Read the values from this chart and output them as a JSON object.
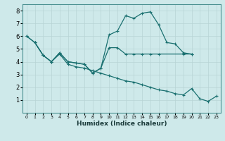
{
  "xlabel": "Humidex (Indice chaleur)",
  "xlim": [
    -0.5,
    23.5
  ],
  "ylim": [
    0,
    8.5
  ],
  "xticks": [
    0,
    1,
    2,
    3,
    4,
    5,
    6,
    7,
    8,
    9,
    10,
    11,
    12,
    13,
    14,
    15,
    16,
    17,
    18,
    19,
    20,
    21,
    22,
    23
  ],
  "yticks": [
    1,
    2,
    3,
    4,
    5,
    6,
    7,
    8
  ],
  "bg_color": "#cee9ea",
  "grid_color": "#b8d4d5",
  "line_color": "#1a7070",
  "series1_x": [
    0,
    1,
    2,
    3,
    4,
    5,
    6,
    7,
    8,
    9,
    10,
    11,
    12,
    13,
    14,
    15,
    16,
    17,
    18,
    19,
    20
  ],
  "series1_y": [
    6.0,
    5.5,
    4.5,
    4.0,
    4.7,
    4.0,
    3.9,
    3.8,
    3.1,
    3.5,
    6.1,
    6.4,
    7.6,
    7.4,
    7.8,
    7.9,
    6.9,
    5.5,
    5.4,
    4.7,
    4.6
  ],
  "series2_x": [
    1,
    2,
    3,
    4,
    5,
    6,
    7,
    8,
    9,
    10,
    11,
    12,
    13,
    14,
    15,
    16,
    19,
    20
  ],
  "series2_y": [
    5.5,
    4.5,
    4.0,
    4.7,
    4.0,
    3.9,
    3.8,
    3.1,
    3.5,
    5.1,
    5.1,
    4.6,
    4.6,
    4.6,
    4.6,
    4.6,
    4.6,
    4.6
  ],
  "series3_x": [
    0,
    1,
    2,
    3,
    4,
    5,
    6,
    7,
    8,
    9,
    10,
    11,
    12,
    13,
    14,
    15,
    16,
    17,
    18,
    19,
    20,
    21,
    22,
    23
  ],
  "series3_y": [
    6.0,
    5.5,
    4.5,
    4.0,
    4.6,
    3.8,
    3.6,
    3.5,
    3.3,
    3.1,
    2.9,
    2.7,
    2.5,
    2.4,
    2.2,
    2.0,
    1.8,
    1.7,
    1.5,
    1.4,
    1.9,
    1.1,
    0.9,
    1.3
  ]
}
